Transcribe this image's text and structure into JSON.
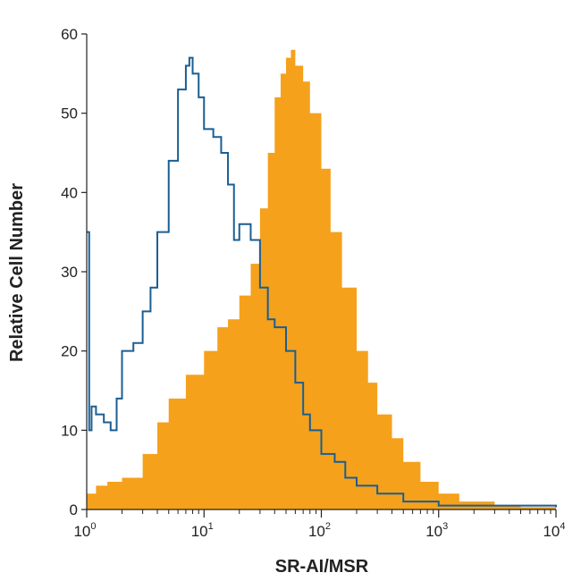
{
  "chart_data": {
    "type": "area",
    "xlabel": "SR-AI/MSR",
    "ylabel": "Relative Cell Number",
    "x_scale": "log",
    "xlim": [
      1,
      10000
    ],
    "ylim": [
      0,
      60
    ],
    "grid": false,
    "x_ticks": [
      {
        "base": "10",
        "exp": "0",
        "value": 1
      },
      {
        "base": "10",
        "exp": "1",
        "value": 10
      },
      {
        "base": "10",
        "exp": "2",
        "value": 100
      },
      {
        "base": "10",
        "exp": "3",
        "value": 1000
      },
      {
        "base": "10",
        "exp": "4",
        "value": 10000
      }
    ],
    "y_ticks": [
      "0",
      "10",
      "20",
      "30",
      "40",
      "50",
      "60"
    ],
    "series": [
      {
        "style": "filled",
        "color": "#F5A11C",
        "x": [
          1,
          1.2,
          1.5,
          2,
          3,
          4,
          5,
          7,
          10,
          13,
          16,
          20,
          25,
          30,
          35,
          40,
          45,
          50,
          55,
          60,
          70,
          80,
          100,
          120,
          150,
          200,
          250,
          300,
          400,
          500,
          700,
          1000,
          1500,
          2000,
          3000,
          5000,
          10000
        ],
        "y": [
          2,
          3,
          3.5,
          4,
          7,
          11,
          14,
          17,
          20,
          23,
          24,
          27,
          31,
          38,
          45,
          52,
          55,
          57,
          58,
          56,
          54,
          50,
          43,
          35,
          28,
          20,
          16,
          12,
          9,
          6,
          3.5,
          2,
          1,
          1,
          0.5,
          0.3,
          0
        ]
      },
      {
        "style": "outline",
        "color": "#1B5E92",
        "x": [
          1,
          1.05,
          1.1,
          1.2,
          1.4,
          1.6,
          1.8,
          2,
          2.5,
          3,
          3.5,
          4,
          5,
          6,
          7,
          7.5,
          8,
          9,
          10,
          12,
          14,
          16,
          18,
          20,
          25,
          30,
          35,
          40,
          50,
          60,
          70,
          80,
          100,
          130,
          160,
          200,
          300,
          500,
          1000,
          10000
        ],
        "y": [
          35,
          10,
          13,
          12,
          11,
          10,
          14,
          20,
          21,
          25,
          28,
          35,
          44,
          53,
          56,
          57,
          55,
          52,
          48,
          47,
          45,
          41,
          34,
          36,
          34,
          28,
          24,
          23,
          20,
          16,
          12,
          10,
          7,
          6,
          4,
          3,
          2,
          1,
          0.5,
          0.3
        ]
      }
    ]
  }
}
